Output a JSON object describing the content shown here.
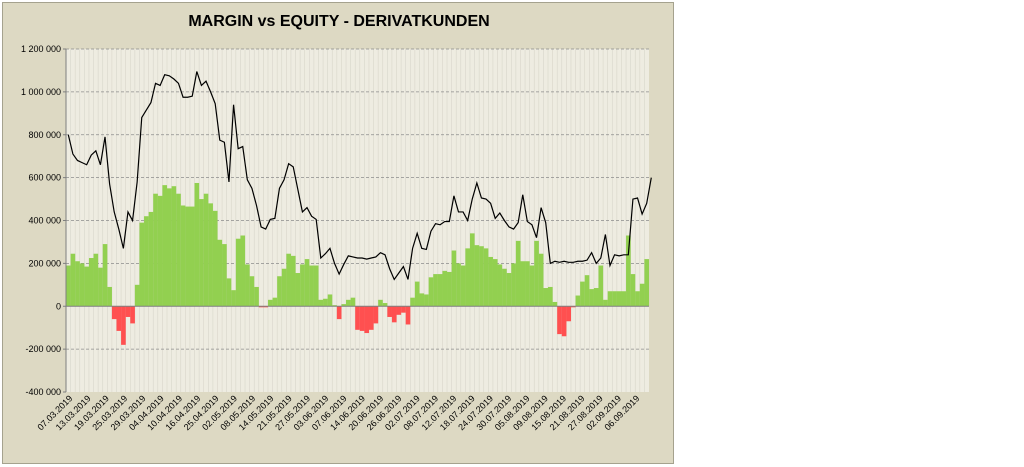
{
  "chart_data": {
    "type": "bar+line",
    "title": "MARGIN vs EQUITY - DERIVATKUNDEN",
    "ylim": [
      -400000,
      1200000
    ],
    "y_ticks": [
      1200000,
      1000000,
      800000,
      600000,
      400000,
      200000,
      0,
      -200000,
      -400000
    ],
    "y_tick_labels": [
      "1 200 000",
      "1 000 000",
      "800 000",
      "600 000",
      "400 000",
      "200 000",
      "0",
      "-200 000",
      "-400 000"
    ],
    "grid": "horizontal",
    "x_tick_labels": [
      "07.03.2019",
      "13.03.2019",
      "19.03.2019",
      "25.03.2019",
      "29.03.2019",
      "04.04.2019",
      "10.04.2019",
      "16.04.2019",
      "25.04.2019",
      "02.05.2019",
      "08.05.2019",
      "14.05.2019",
      "21.05.2019",
      "27.05.2019",
      "03.06.2019",
      "07.06.2019",
      "14.06.2019",
      "20.06.2019",
      "26.06.2019",
      "02.07.2019",
      "08.07.2019",
      "12.07.2019",
      "18.07.2019",
      "24.07.2019",
      "30.07.2019",
      "05.08.2019",
      "09.08.2019",
      "15.08.2019",
      "21.08.2019",
      "27.08.2019",
      "02.09.2019",
      "06.09.2019"
    ],
    "colors": {
      "positive_bar": "#92d050",
      "negative_bar": "#ff5050",
      "line": "#000000",
      "plot_bg": "#eeece1",
      "frame_bg": "#ddd9c3"
    },
    "series": [
      {
        "kind": "bar",
        "values": [
          190000,
          245000,
          210000,
          200000,
          185000,
          225000,
          245000,
          180000,
          290000,
          90000,
          -60000,
          -115000,
          -180000,
          -50000,
          -80000,
          100000,
          390000,
          420000,
          440000,
          525000,
          515000,
          565000,
          550000,
          560000,
          525000,
          470000,
          465000,
          465000,
          575000,
          500000,
          525000,
          480000,
          445000,
          310000,
          290000,
          130000,
          75000,
          315000,
          330000,
          195000,
          140000,
          90000,
          -5000,
          -5000,
          30000,
          40000,
          140000,
          175000,
          245000,
          235000,
          155000,
          195000,
          220000,
          190000,
          190000,
          30000,
          35000,
          55000,
          5000,
          -60000,
          10000,
          30000,
          40000,
          -110000,
          -115000,
          -125000,
          -110000,
          -80000,
          30000,
          15000,
          -50000,
          -75000,
          -40000,
          -30000,
          -85000,
          40000,
          115000,
          60000,
          55000,
          135000,
          150000,
          150000,
          165000,
          160000,
          260000,
          200000,
          190000,
          270000,
          340000,
          285000,
          280000,
          270000,
          230000,
          220000,
          195000,
          175000,
          155000,
          200000,
          305000,
          210000,
          210000,
          190000,
          305000,
          245000,
          85000,
          90000,
          20000,
          -130000,
          -140000,
          -70000,
          -5000,
          50000,
          115000,
          145000,
          80000,
          85000,
          190000,
          30000,
          70000,
          70000,
          70000,
          70000,
          330000,
          150000,
          70000,
          105000,
          220000
        ]
      },
      {
        "kind": "line",
        "values": [
          800000,
          710000,
          680000,
          670000,
          660000,
          705000,
          725000,
          660000,
          790000,
          570000,
          440000,
          360000,
          270000,
          440000,
          400000,
          580000,
          880000,
          915000,
          950000,
          1040000,
          1030000,
          1080000,
          1075000,
          1060000,
          1040000,
          975000,
          975000,
          980000,
          1095000,
          1030000,
          1050000,
          1000000,
          945000,
          775000,
          765000,
          580000,
          940000,
          735000,
          745000,
          590000,
          550000,
          470000,
          370000,
          360000,
          405000,
          410000,
          550000,
          590000,
          665000,
          650000,
          545000,
          440000,
          460000,
          420000,
          405000,
          225000,
          245000,
          270000,
          200000,
          150000,
          195000,
          235000,
          230000,
          225000,
          225000,
          220000,
          225000,
          230000,
          250000,
          240000,
          175000,
          125000,
          155000,
          185000,
          125000,
          270000,
          340000,
          270000,
          265000,
          350000,
          385000,
          380000,
          395000,
          395000,
          515000,
          440000,
          440000,
          400000,
          500000,
          575000,
          505000,
          500000,
          480000,
          410000,
          435000,
          400000,
          370000,
          360000,
          390000,
          520000,
          395000,
          380000,
          320000,
          460000,
          390000,
          200000,
          210000,
          205000,
          210000,
          205000,
          205000,
          210000,
          210000,
          215000,
          250000,
          200000,
          225000,
          335000,
          190000,
          240000,
          235000,
          240000,
          240000,
          500000,
          505000,
          430000,
          480000,
          600000
        ]
      }
    ]
  }
}
